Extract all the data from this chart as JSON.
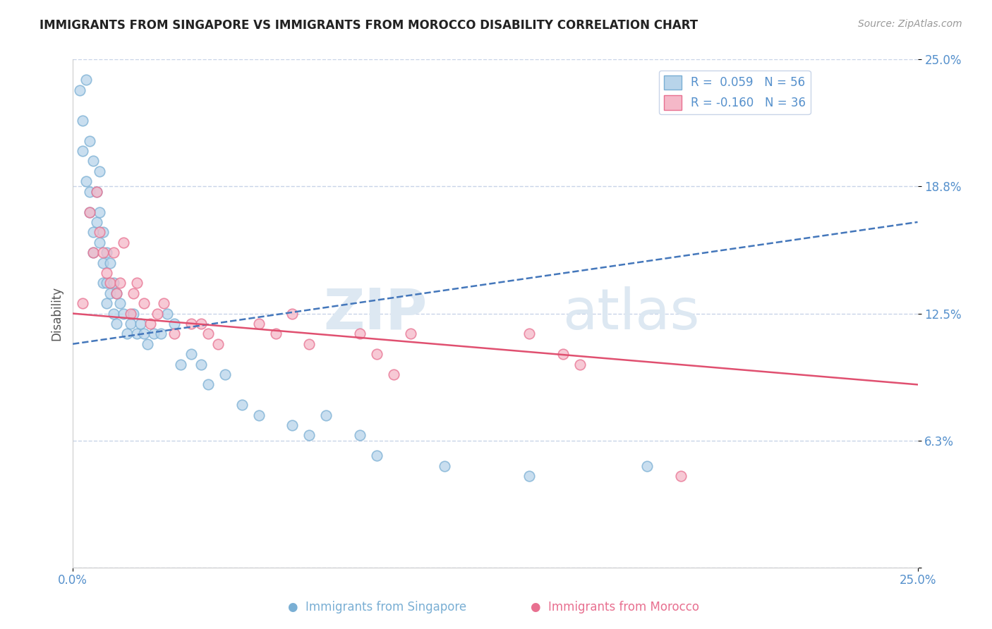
{
  "title": "IMMIGRANTS FROM SINGAPORE VS IMMIGRANTS FROM MOROCCO DISABILITY CORRELATION CHART",
  "source": "Source: ZipAtlas.com",
  "ylabel": "Disability",
  "xlim": [
    0.0,
    0.25
  ],
  "ylim": [
    0.0,
    0.25
  ],
  "ytick_positions": [
    0.0,
    0.0625,
    0.125,
    0.1875,
    0.25
  ],
  "ytick_labels": [
    "",
    "6.3%",
    "12.5%",
    "18.8%",
    "25.0%"
  ],
  "singapore_color": "#b8d4ea",
  "morocco_color": "#f5b8c8",
  "singapore_edge": "#7aafd4",
  "morocco_edge": "#e87090",
  "trend_singapore_color": "#4477bb",
  "trend_morocco_color": "#e05070",
  "legend_r_singapore": "R =  0.059",
  "legend_n_singapore": "N = 56",
  "legend_r_morocco": "R = -0.160",
  "legend_n_morocco": "N = 36",
  "watermark_zip": "ZIP",
  "watermark_atlas": "atlas",
  "singapore_trend_x": [
    0.0,
    0.25
  ],
  "singapore_trend_y": [
    0.11,
    0.17
  ],
  "morocco_trend_x": [
    0.0,
    0.25
  ],
  "morocco_trend_y": [
    0.125,
    0.09
  ],
  "background_color": "#ffffff",
  "grid_color": "#c8d4e8",
  "title_color": "#222222",
  "axis_label_color": "#555555",
  "tick_label_color": "#5590cc",
  "marker_size": 110,
  "singapore_x": [
    0.002,
    0.003,
    0.003,
    0.004,
    0.004,
    0.005,
    0.005,
    0.005,
    0.006,
    0.006,
    0.006,
    0.007,
    0.007,
    0.008,
    0.008,
    0.008,
    0.009,
    0.009,
    0.009,
    0.01,
    0.01,
    0.01,
    0.011,
    0.011,
    0.012,
    0.012,
    0.013,
    0.013,
    0.014,
    0.015,
    0.016,
    0.017,
    0.018,
    0.019,
    0.02,
    0.021,
    0.022,
    0.024,
    0.026,
    0.028,
    0.03,
    0.032,
    0.035,
    0.038,
    0.04,
    0.045,
    0.05,
    0.055,
    0.065,
    0.07,
    0.075,
    0.085,
    0.09,
    0.11,
    0.135,
    0.17
  ],
  "singapore_y": [
    0.235,
    0.22,
    0.205,
    0.24,
    0.19,
    0.21,
    0.185,
    0.175,
    0.2,
    0.165,
    0.155,
    0.185,
    0.17,
    0.195,
    0.175,
    0.16,
    0.165,
    0.15,
    0.14,
    0.155,
    0.14,
    0.13,
    0.15,
    0.135,
    0.14,
    0.125,
    0.135,
    0.12,
    0.13,
    0.125,
    0.115,
    0.12,
    0.125,
    0.115,
    0.12,
    0.115,
    0.11,
    0.115,
    0.115,
    0.125,
    0.12,
    0.1,
    0.105,
    0.1,
    0.09,
    0.095,
    0.08,
    0.075,
    0.07,
    0.065,
    0.075,
    0.065,
    0.055,
    0.05,
    0.045,
    0.05
  ],
  "morocco_x": [
    0.003,
    0.005,
    0.006,
    0.007,
    0.008,
    0.009,
    0.01,
    0.011,
    0.012,
    0.013,
    0.014,
    0.015,
    0.017,
    0.018,
    0.019,
    0.021,
    0.023,
    0.025,
    0.027,
    0.03,
    0.035,
    0.038,
    0.04,
    0.043,
    0.055,
    0.06,
    0.065,
    0.07,
    0.085,
    0.09,
    0.095,
    0.1,
    0.135,
    0.145,
    0.15,
    0.18
  ],
  "morocco_y": [
    0.13,
    0.175,
    0.155,
    0.185,
    0.165,
    0.155,
    0.145,
    0.14,
    0.155,
    0.135,
    0.14,
    0.16,
    0.125,
    0.135,
    0.14,
    0.13,
    0.12,
    0.125,
    0.13,
    0.115,
    0.12,
    0.12,
    0.115,
    0.11,
    0.12,
    0.115,
    0.125,
    0.11,
    0.115,
    0.105,
    0.095,
    0.115,
    0.115,
    0.105,
    0.1,
    0.045
  ]
}
